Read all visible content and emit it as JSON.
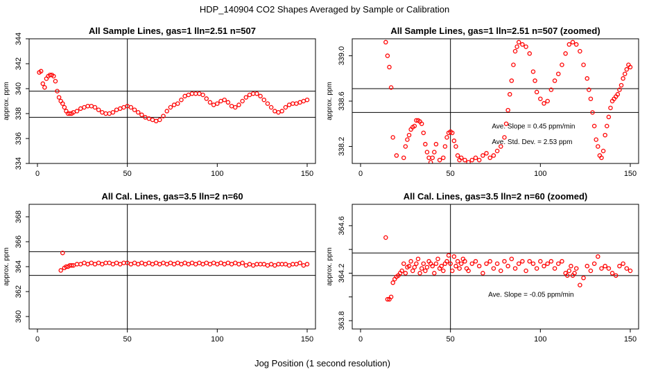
{
  "figure": {
    "main_title": "HDP_140904  CO2 Shapes Averaged by Sample or Calibration",
    "x_label": "Jog Position (1 second resolution)"
  },
  "colors": {
    "points": "#ff0000",
    "axes": "#000000"
  },
  "chart_data": [
    {
      "id": "sample",
      "type": "scatter",
      "title": "All Sample Lines, gas=1 lln=2.51 n=507",
      "ylabel": "approx. ppm",
      "xlim": [
        0,
        150
      ],
      "ylim": [
        334,
        344
      ],
      "x_ticks": [
        0,
        50,
        100,
        150
      ],
      "y_ticks": [
        334,
        336,
        338,
        340,
        342,
        344
      ],
      "vline": 50,
      "hlines": [
        337.7,
        339.8
      ],
      "annotations": [],
      "x": [
        1,
        2,
        3,
        4,
        5,
        6,
        7,
        8,
        9,
        10,
        11,
        12,
        13,
        14,
        15,
        16,
        17,
        18,
        19,
        20,
        22,
        24,
        26,
        28,
        30,
        32,
        34,
        36,
        38,
        40,
        42,
        44,
        46,
        48,
        50,
        52,
        54,
        56,
        58,
        60,
        62,
        64,
        66,
        68,
        70,
        72,
        74,
        76,
        78,
        80,
        82,
        84,
        86,
        88,
        90,
        92,
        94,
        96,
        98,
        100,
        102,
        104,
        106,
        108,
        110,
        112,
        114,
        116,
        118,
        120,
        122,
        124,
        126,
        128,
        130,
        132,
        134,
        136,
        138,
        140,
        142,
        144,
        146,
        148,
        150
      ],
      "y": [
        341.3,
        341.4,
        340.4,
        340.1,
        340.8,
        341.0,
        341.1,
        341.1,
        341.0,
        340.6,
        339.8,
        339.3,
        339.0,
        338.8,
        338.5,
        338.2,
        338.0,
        338.0,
        338.0,
        338.1,
        338.2,
        338.4,
        338.5,
        338.6,
        338.6,
        338.5,
        338.3,
        338.1,
        338.0,
        338.0,
        338.1,
        338.3,
        338.4,
        338.5,
        338.6,
        338.5,
        338.3,
        338.1,
        337.9,
        337.7,
        337.6,
        337.5,
        337.4,
        337.5,
        337.8,
        338.2,
        338.5,
        338.7,
        338.8,
        339.1,
        339.4,
        339.5,
        339.6,
        339.6,
        339.6,
        339.5,
        339.2,
        338.9,
        338.7,
        338.8,
        339.0,
        339.1,
        338.9,
        338.6,
        338.5,
        338.7,
        339.0,
        339.3,
        339.5,
        339.6,
        339.6,
        339.4,
        339.1,
        338.8,
        338.5,
        338.2,
        338.1,
        338.2,
        338.5,
        338.7,
        338.8,
        338.8,
        338.9,
        339.0,
        339.1
      ]
    },
    {
      "id": "sample-zoomed",
      "type": "scatter",
      "title": "All Sample Lines, gas=1 lln=2.51 n=507 (zoomed)",
      "ylabel": "approx. ppm",
      "xlim": [
        0,
        150
      ],
      "ylim": [
        338.05,
        339.15
      ],
      "x_ticks": [
        0,
        50,
        100,
        150
      ],
      "y_ticks": [
        338.2,
        338.6,
        339.0
      ],
      "y_tick_labels": [
        "338.2",
        "338.6",
        "339.0"
      ],
      "vline": 50,
      "hlines": [
        338.5,
        338.71
      ],
      "annotations": [
        {
          "text": "Ave. Slope =  0.45  ppm/min",
          "x": 73,
          "y": 338.36
        },
        {
          "text": "Ave. Std. Dev. =  2.53  ppm",
          "x": 73,
          "y": 338.22
        }
      ],
      "x": [
        14,
        15,
        16,
        17,
        18,
        20,
        24,
        25,
        26,
        27,
        28,
        29,
        30,
        31,
        32,
        33,
        34,
        35,
        36,
        37,
        38,
        39,
        40,
        41,
        42,
        44,
        46,
        47,
        48,
        49,
        50,
        51,
        52,
        53,
        54,
        55,
        56,
        58,
        60,
        62,
        64,
        66,
        68,
        70,
        72,
        74,
        76,
        78,
        80,
        81,
        82,
        83,
        84,
        85,
        86,
        87,
        88,
        90,
        92,
        94,
        96,
        97,
        98,
        100,
        102,
        104,
        106,
        108,
        110,
        112,
        114,
        116,
        118,
        120,
        122,
        124,
        126,
        127,
        128,
        129,
        130,
        131,
        132,
        133,
        134,
        135,
        136,
        137,
        138,
        139,
        140,
        141,
        142,
        143,
        144,
        145,
        146,
        147,
        148,
        149,
        150
      ],
      "y": [
        339.12,
        339.0,
        338.9,
        338.72,
        338.28,
        338.12,
        338.1,
        338.2,
        338.26,
        338.3,
        338.35,
        338.37,
        338.38,
        338.43,
        338.43,
        338.42,
        338.4,
        338.32,
        338.22,
        338.15,
        338.1,
        338.06,
        338.1,
        338.15,
        338.22,
        338.08,
        338.1,
        338.2,
        338.28,
        338.32,
        338.33,
        338.32,
        338.25,
        338.2,
        338.12,
        338.08,
        338.1,
        338.08,
        338.06,
        338.08,
        338.1,
        338.08,
        338.12,
        338.14,
        338.1,
        338.12,
        338.16,
        338.2,
        338.28,
        338.4,
        338.52,
        338.66,
        338.78,
        338.92,
        339.04,
        339.08,
        339.12,
        339.1,
        339.08,
        339.02,
        338.86,
        338.78,
        338.68,
        338.62,
        338.58,
        338.6,
        338.7,
        338.78,
        338.84,
        338.92,
        339.02,
        339.1,
        339.12,
        339.1,
        339.04,
        338.92,
        338.8,
        338.7,
        338.62,
        338.5,
        338.38,
        338.26,
        338.2,
        338.12,
        338.1,
        338.16,
        338.3,
        338.38,
        338.46,
        338.54,
        338.6,
        338.62,
        338.64,
        338.66,
        338.7,
        338.74,
        338.8,
        338.84,
        338.88,
        338.92,
        338.9
      ]
    },
    {
      "id": "cal",
      "type": "scatter",
      "title": "All Cal. Lines, gas=3.5 lln=2 n=60",
      "ylabel": "approx. ppm",
      "xlim": [
        0,
        150
      ],
      "ylim": [
        359,
        369
      ],
      "x_ticks": [
        0,
        50,
        100,
        150
      ],
      "y_ticks": [
        360,
        362,
        364,
        366,
        368
      ],
      "vline": 50,
      "hlines": [
        363.3,
        365.2
      ],
      "annotations": [],
      "x": [
        13,
        14,
        15,
        16,
        17,
        18,
        19,
        20,
        22,
        24,
        26,
        28,
        30,
        32,
        34,
        36,
        38,
        40,
        42,
        44,
        46,
        48,
        50,
        52,
        54,
        56,
        58,
        60,
        62,
        64,
        66,
        68,
        70,
        72,
        74,
        76,
        78,
        80,
        82,
        84,
        86,
        88,
        90,
        92,
        94,
        96,
        98,
        100,
        102,
        104,
        106,
        108,
        110,
        112,
        114,
        116,
        118,
        120,
        122,
        124,
        126,
        128,
        130,
        132,
        134,
        136,
        138,
        140,
        142,
        144,
        146,
        148,
        150
      ],
      "y": [
        363.7,
        365.1,
        363.9,
        364.0,
        364.0,
        364.1,
        364.1,
        364.1,
        364.2,
        364.2,
        364.3,
        364.2,
        364.3,
        364.2,
        364.3,
        364.2,
        364.3,
        364.3,
        364.2,
        364.3,
        364.2,
        364.3,
        364.3,
        364.2,
        364.3,
        364.2,
        364.3,
        364.2,
        364.3,
        364.2,
        364.3,
        364.2,
        364.3,
        364.2,
        364.3,
        364.2,
        364.3,
        364.2,
        364.3,
        364.2,
        364.3,
        364.2,
        364.3,
        364.2,
        364.3,
        364.2,
        364.3,
        364.2,
        364.3,
        364.2,
        364.3,
        364.2,
        364.3,
        364.2,
        364.3,
        364.1,
        364.2,
        364.1,
        364.2,
        364.2,
        364.2,
        364.1,
        364.2,
        364.1,
        364.2,
        364.2,
        364.2,
        364.1,
        364.2,
        364.2,
        364.3,
        364.1,
        364.2
      ]
    },
    {
      "id": "cal-zoomed",
      "type": "scatter",
      "title": "All Cal. Lines, gas=3.5 lln=2 n=60 (zoomed)",
      "ylabel": "approx. ppm",
      "xlim": [
        0,
        150
      ],
      "ylim": [
        363.73,
        364.78
      ],
      "x_ticks": [
        0,
        50,
        100,
        150
      ],
      "y_ticks": [
        363.8,
        364.0,
        364.2,
        364.4,
        364.6
      ],
      "y_tick_labels": [
        "363.8",
        "",
        "364.2",
        "",
        "364.6"
      ],
      "vline": 50,
      "hlines": [
        364.18,
        364.37
      ],
      "annotations": [
        {
          "text": "Ave. Slope =  -0.05  ppm/min",
          "x": 71,
          "y": 364.0
        }
      ],
      "x": [
        14,
        15,
        16,
        17,
        18,
        19,
        20,
        21,
        22,
        23,
        24,
        25,
        26,
        27,
        28,
        29,
        30,
        31,
        32,
        33,
        34,
        35,
        36,
        37,
        38,
        39,
        40,
        41,
        42,
        43,
        44,
        45,
        46,
        47,
        48,
        49,
        50,
        51,
        52,
        53,
        54,
        55,
        56,
        57,
        58,
        59,
        60,
        62,
        64,
        66,
        68,
        70,
        72,
        74,
        76,
        78,
        80,
        82,
        84,
        86,
        88,
        90,
        92,
        94,
        96,
        98,
        100,
        102,
        104,
        106,
        108,
        110,
        112,
        114,
        115,
        116,
        117,
        118,
        119,
        120,
        122,
        124,
        126,
        128,
        130,
        132,
        134,
        136,
        138,
        140,
        142,
        144,
        146,
        148,
        150
      ],
      "y": [
        364.5,
        363.98,
        363.98,
        364.0,
        364.12,
        364.15,
        364.17,
        364.18,
        364.2,
        364.22,
        364.28,
        364.2,
        364.25,
        364.26,
        364.3,
        364.22,
        364.25,
        364.28,
        364.32,
        364.2,
        364.24,
        364.28,
        364.22,
        364.25,
        364.3,
        364.28,
        364.26,
        364.2,
        364.28,
        364.32,
        364.24,
        364.26,
        364.22,
        364.28,
        364.3,
        364.35,
        364.28,
        364.22,
        364.34,
        364.26,
        364.3,
        364.24,
        364.28,
        364.32,
        364.3,
        364.24,
        364.22,
        364.28,
        364.3,
        364.26,
        364.2,
        364.28,
        364.3,
        364.24,
        364.28,
        364.22,
        364.3,
        364.26,
        364.32,
        364.24,
        364.28,
        364.3,
        364.22,
        364.3,
        364.28,
        364.24,
        364.3,
        364.26,
        364.28,
        364.3,
        364.24,
        364.28,
        364.3,
        364.2,
        364.18,
        364.22,
        364.26,
        364.18,
        364.2,
        364.24,
        364.1,
        364.16,
        364.26,
        364.22,
        364.28,
        364.34,
        364.24,
        364.26,
        364.24,
        364.2,
        364.18,
        364.26,
        364.28,
        364.24,
        364.22
      ]
    }
  ]
}
